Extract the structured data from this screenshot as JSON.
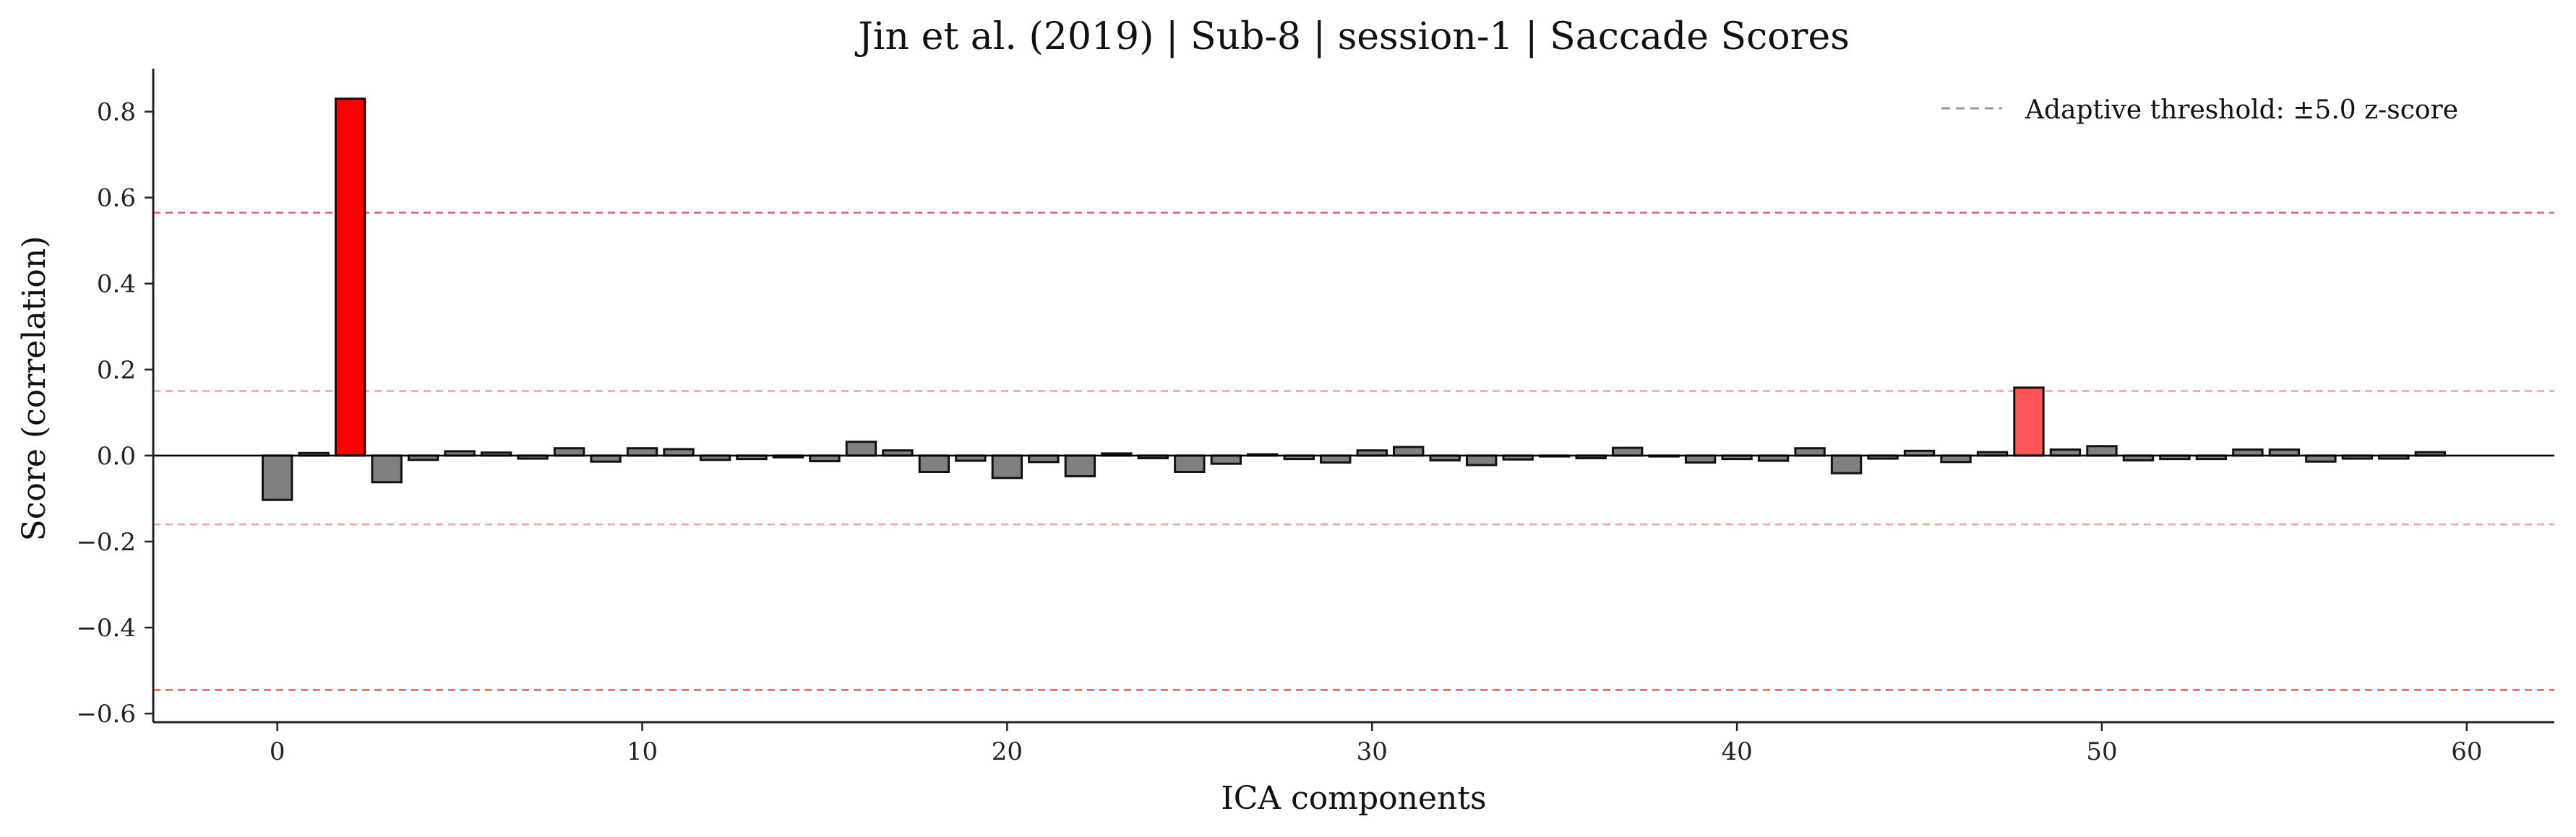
{
  "chart_data": {
    "type": "bar",
    "title": "Jin et al. (2019) | Sub-8 | session-1 | Saccade Scores",
    "xlabel": "ICA components",
    "ylabel": "Score (correlation)",
    "xlim": [
      -3.4,
      62.4
    ],
    "ylim": [
      -0.62,
      0.9
    ],
    "xticks": [
      0,
      10,
      20,
      30,
      40,
      50,
      60
    ],
    "yticks": [
      -0.6,
      -0.4,
      -0.2,
      0.0,
      0.2,
      0.4,
      0.6,
      0.8
    ],
    "ytick_labels": [
      "−0.6",
      "−0.4",
      "−0.2",
      "0.0",
      "0.2",
      "0.4",
      "0.6",
      "0.8"
    ],
    "grid": false,
    "legend": {
      "position": "top-right",
      "entries": [
        {
          "label": "Adaptive threshold: ±5.0 z-score",
          "style": "dashed",
          "color": "#999999"
        }
      ]
    },
    "thresholds": [
      {
        "value": 0.565,
        "color": "#e06060"
      },
      {
        "value": 0.15,
        "color": "#f0a0a0"
      },
      {
        "value": -0.16,
        "color": "#f0a0a0"
      },
      {
        "value": -0.545,
        "color": "#e06060"
      }
    ],
    "colors": {
      "default_bar": "#808080",
      "primary_flag": "#ff0000",
      "secondary_flag": "#ff5555",
      "edge": "#111111",
      "zero_line": "#000000"
    },
    "x": [
      0,
      1,
      2,
      3,
      4,
      5,
      6,
      7,
      8,
      9,
      10,
      11,
      12,
      13,
      14,
      15,
      16,
      17,
      18,
      19,
      20,
      21,
      22,
      23,
      24,
      25,
      26,
      27,
      28,
      29,
      30,
      31,
      32,
      33,
      34,
      35,
      36,
      37,
      38,
      39,
      40,
      41,
      42,
      43,
      44,
      45,
      46,
      47,
      48,
      49,
      50,
      51,
      52,
      53,
      54,
      55,
      56,
      57,
      58,
      59
    ],
    "values": [
      -0.103,
      0.006,
      0.83,
      -0.062,
      -0.01,
      0.01,
      0.007,
      -0.007,
      0.017,
      -0.014,
      0.017,
      0.015,
      -0.01,
      -0.008,
      -0.004,
      -0.013,
      0.032,
      0.012,
      -0.038,
      -0.012,
      -0.052,
      -0.015,
      -0.048,
      0.005,
      -0.006,
      -0.038,
      -0.019,
      0.003,
      -0.008,
      -0.016,
      0.012,
      0.02,
      -0.011,
      -0.022,
      -0.009,
      -0.002,
      -0.006,
      0.018,
      -0.002,
      -0.016,
      -0.008,
      -0.012,
      0.017,
      -0.041,
      -0.007,
      0.011,
      -0.015,
      0.008,
      0.158,
      0.014,
      0.022,
      -0.011,
      -0.008,
      -0.008,
      0.014,
      0.014,
      -0.014,
      -0.007,
      -0.007,
      0.008
    ],
    "flagged_primary": [
      2
    ],
    "flagged_secondary": [
      48
    ]
  }
}
